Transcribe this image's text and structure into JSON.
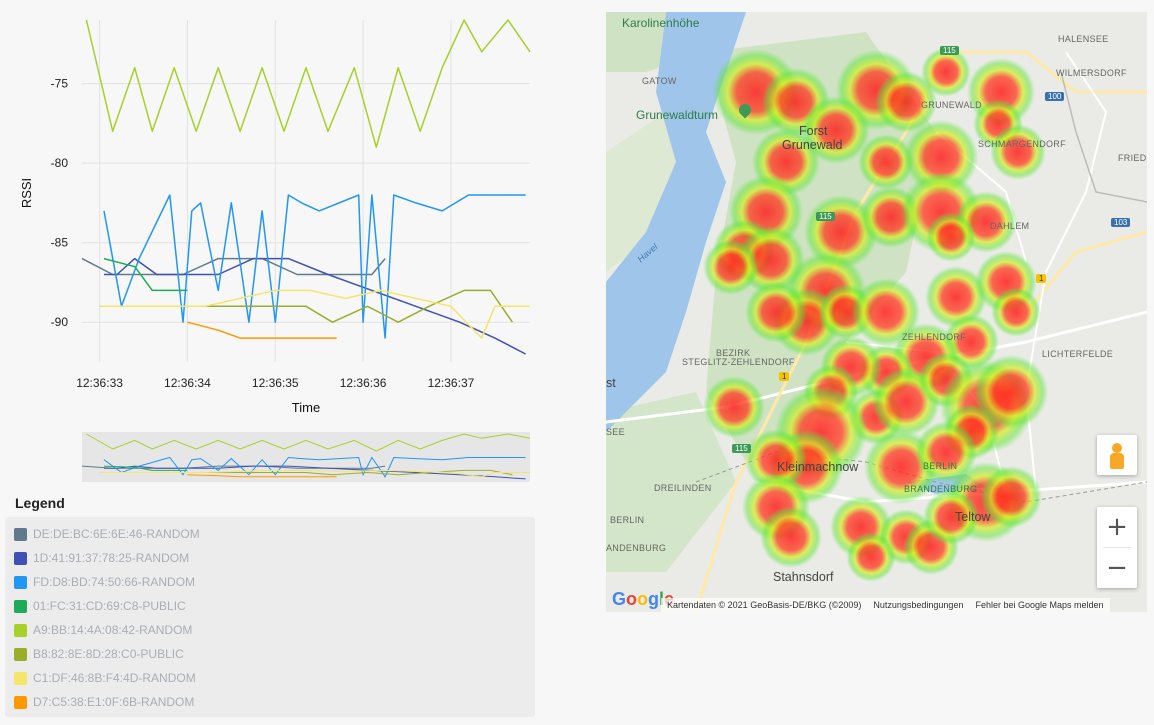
{
  "chart": {
    "ylabel": "RSSI",
    "xlabel": "Time",
    "y_ticks": [
      "-75",
      "-80",
      "-85",
      "-90"
    ],
    "x_ticks": [
      "12:36:33",
      "12:36:34",
      "12:36:35",
      "12:36:36",
      "12:36:37"
    ]
  },
  "chart_data": {
    "type": "line",
    "xlabel": "Time",
    "ylabel": "RSSI",
    "ylim": [
      -92.5,
      -71
    ],
    "xlim": [
      32.8,
      37.9
    ],
    "x_unit": "seconds after 12:36",
    "grid": true,
    "series": [
      {
        "name": "DE:DE:BC:6E:6E:46-RANDOM",
        "color": "#5e7a8c",
        "x": [
          32.8,
          33.15,
          33.55,
          33.95,
          34.35,
          34.85,
          35.25,
          35.65,
          36.1,
          36.25
        ],
        "y": [
          -86,
          -87,
          -87,
          -87,
          -86,
          -86,
          -87,
          -87,
          -87,
          -86
        ]
      },
      {
        "name": "1D:41:91:37:78:25-RANDOM",
        "color": "#3f51b5",
        "x": [
          33.05,
          33.2,
          33.4,
          33.65,
          33.95,
          34.35,
          34.75,
          35.15,
          35.6,
          36.1,
          36.6,
          37.1,
          37.5,
          37.85
        ],
        "y": [
          -87,
          -87,
          -86,
          -87,
          -87,
          -87,
          -86,
          -86,
          -87,
          -88,
          -89,
          -90,
          -91,
          -92
        ]
      },
      {
        "name": "FD:D8:BD:74:50:66-RANDOM",
        "color": "#2196f3",
        "x": [
          33.05,
          33.25,
          33.45,
          33.8,
          33.95,
          34.05,
          34.15,
          34.35,
          34.5,
          34.7,
          34.85,
          35.0,
          35.15,
          35.3,
          35.5,
          35.95,
          36.0,
          36.1,
          36.25,
          36.35,
          36.6,
          36.9,
          37.2,
          37.5,
          37.85
        ],
        "y": [
          -83,
          -89,
          -86,
          -82,
          -90,
          -83,
          -82.5,
          -88,
          -82.5,
          -90,
          -83,
          -90,
          -82,
          -82.5,
          -83,
          -82,
          -90,
          -82,
          -91,
          -82,
          -82.5,
          -83,
          -82,
          -82,
          -82
        ]
      },
      {
        "name": "01:FC:31:CD:69:C8-PUBLIC",
        "color": "#1faa59",
        "x": [
          33.05,
          33.4,
          33.6,
          33.85,
          34.0
        ],
        "y": [
          -86,
          -86.5,
          -88,
          -88,
          -88
        ]
      },
      {
        "name": "A9:BB:14:4A:08:42-RANDOM",
        "color": "#a6d02a",
        "x": [
          32.85,
          33.15,
          33.4,
          33.6,
          33.85,
          34.1,
          34.35,
          34.6,
          34.85,
          35.1,
          35.35,
          35.6,
          35.9,
          36.15,
          36.4,
          36.65,
          36.9,
          37.15,
          37.35,
          37.65,
          37.9
        ],
        "y": [
          -71,
          -78,
          -74,
          -78,
          -74,
          -78,
          -74,
          -78,
          -74,
          -78,
          -74,
          -78,
          -74,
          -79,
          -74,
          -78,
          -74,
          -71,
          -73,
          -71,
          -73
        ]
      },
      {
        "name": "B8:82:8E:8D:28:C0-PUBLIC",
        "color": "#9bae2c",
        "x": [
          33.0,
          33.3,
          33.7,
          34.05,
          34.45,
          34.8,
          35.05,
          35.35,
          35.65,
          36.05,
          36.4,
          36.75,
          37.15,
          37.45,
          37.7
        ],
        "y": [
          -89,
          -89,
          -89,
          -89,
          -89,
          -89,
          -89,
          -89,
          -90,
          -89,
          -90,
          -89,
          -88,
          -88,
          -90
        ]
      },
      {
        "name": "C1:DF:46:8B:F4:4D-RANDOM",
        "color": "#f5e56b",
        "x": [
          33.0,
          33.4,
          33.8,
          34.2,
          34.6,
          35.0,
          35.4,
          35.8,
          36.2,
          36.6,
          37.0,
          37.35,
          37.5,
          37.7,
          37.9
        ],
        "y": [
          -89,
          -89,
          -89,
          -89,
          -88.5,
          -88,
          -88,
          -88.5,
          -88,
          -88.5,
          -89,
          -91,
          -89,
          -89,
          -89
        ]
      },
      {
        "name": "D7:C5:38:E1:0F:6B-RANDOM",
        "color": "#ff9800",
        "x": [
          34.0,
          34.35,
          34.6,
          34.9,
          35.4,
          35.7
        ],
        "y": [
          -90,
          -90.5,
          -91,
          -91,
          -91,
          -91
        ]
      }
    ]
  },
  "legend": {
    "title": "Legend",
    "items": [
      {
        "label": "DE:DE:BC:6E:6E:46-RANDOM",
        "color": "#5e7a8c"
      },
      {
        "label": "1D:41:91:37:78:25-RANDOM",
        "color": "#3f51b5"
      },
      {
        "label": "FD:D8:BD:74:50:66-RANDOM",
        "color": "#2196f3"
      },
      {
        "label": "01:FC:31:CD:69:C8-PUBLIC",
        "color": "#1faa59"
      },
      {
        "label": "A9:BB:14:4A:08:42-RANDOM",
        "color": "#a6d02a"
      },
      {
        "label": "B8:82:8E:8D:28:C0-PUBLIC",
        "color": "#9bae2c"
      },
      {
        "label": "C1:DF:46:8B:F4:4D-RANDOM",
        "color": "#f5e56b"
      },
      {
        "label": "D7:C5:38:E1:0F:6B-RANDOM",
        "color": "#ff9800"
      }
    ]
  },
  "map": {
    "labels": {
      "karolinenhoehe": "Karolinenhöhe",
      "halensee": "HALENSEE",
      "wilmersdorf": "WILMERSDORF",
      "gatow": "GATOW",
      "grunewaldturm": "Grunewaldturm",
      "grunewald": "GRUNEWALD",
      "forst1": "Forst",
      "forst2": "Grunewald",
      "schmargendorf": "SCHMARGENDORF",
      "friede": "FRIEDE",
      "havel": "Havel",
      "dahlem": "DAHLEM",
      "zehlendorf": "ZEHLENDORF",
      "bezirk1": "BEZIRK",
      "bezirk2": "STEGLITZ-ZEHLENDORF",
      "lichterfelde": "LICHTERFELDE",
      "st": "st",
      "see": "SEE",
      "kleinmachnow": "Kleinmachnow",
      "berlin1": "BERLIN",
      "brandenburg1": "BRANDENBURG",
      "dreilinden": "DREILINDEN",
      "teltow": "Teltow",
      "berlin2": "BERLIN",
      "brandenburg2": "ANDENBURG",
      "stahnsdorf": "Stahnsdorf"
    },
    "shields": {
      "s115a": "115",
      "s100": "100",
      "s115b": "115",
      "s103": "103",
      "s1a": "1",
      "s1b": "1",
      "s115c": "115"
    },
    "zoom_in": "+",
    "zoom_out": "−",
    "google": "Google",
    "attribution": {
      "data": "Kartendaten © 2021 GeoBasis-DE/BKG (©2009)",
      "terms": "Nutzungsbedingungen",
      "report": "Fehler bei Google Maps melden"
    }
  }
}
